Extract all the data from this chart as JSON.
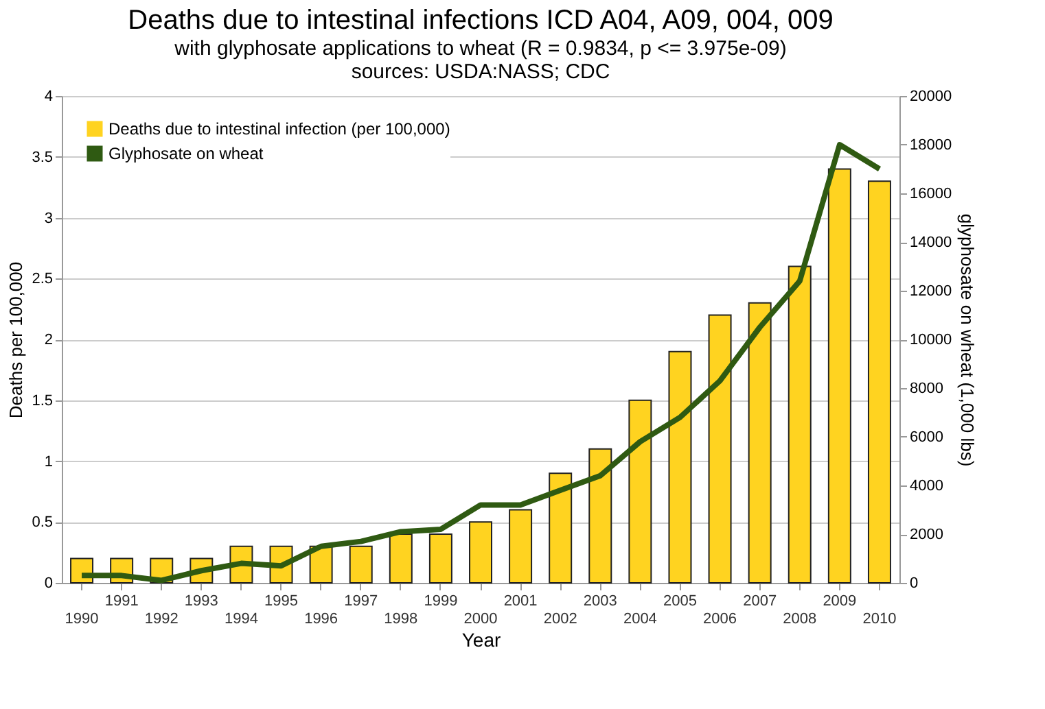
{
  "chart_data": {
    "type": "bar",
    "title": "Deaths due to intestinal infections ICD A04, A09, 004, 009",
    "subtitle": "with glyphosate applications to wheat (R = 0.9834, p <= 3.975e-09)",
    "annotations": [
      "sources: USDA:NASS; CDC"
    ],
    "xlabel": "Year",
    "ylabel": "Deaths per 100,000",
    "y2label": "glyphosate on wheat (1,000 lbs)",
    "categories": [
      "1990",
      "1991",
      "1992",
      "1993",
      "1994",
      "1995",
      "1996",
      "1997",
      "1998",
      "1999",
      "2000",
      "2001",
      "2002",
      "2003",
      "2004",
      "2005",
      "2006",
      "2007",
      "2008",
      "2009",
      "2010"
    ],
    "series": [
      {
        "name": "Deaths due to intestinal infection (per 100,000)",
        "color": "#ffd320",
        "values": [
          0.2,
          0.2,
          0.2,
          0.2,
          0.3,
          0.3,
          0.3,
          0.3,
          0.4,
          0.4,
          0.5,
          0.6,
          0.9,
          1.1,
          1.5,
          1.9,
          2.2,
          2.3,
          2.6,
          3.4,
          3.3
        ]
      },
      {
        "name": "Glyphosate on wheat",
        "type": "line",
        "axis": "y2",
        "color": "#2f5a12",
        "values": [
          300,
          300,
          100,
          500,
          800,
          700,
          1500,
          1700,
          2100,
          2200,
          3200,
          3200,
          3800,
          4400,
          5800,
          6800,
          8300,
          10500,
          12400,
          18000,
          17000
        ]
      }
    ],
    "ylim": [
      0,
      4
    ],
    "yticks": [
      0,
      0.5,
      1,
      1.5,
      2,
      2.5,
      3,
      3.5,
      4
    ],
    "y2lim": [
      0,
      20000
    ],
    "y2ticks": [
      0,
      2000,
      4000,
      6000,
      8000,
      10000,
      12000,
      14000,
      16000,
      18000,
      20000
    ],
    "grid": "y",
    "legend": "top left"
  }
}
